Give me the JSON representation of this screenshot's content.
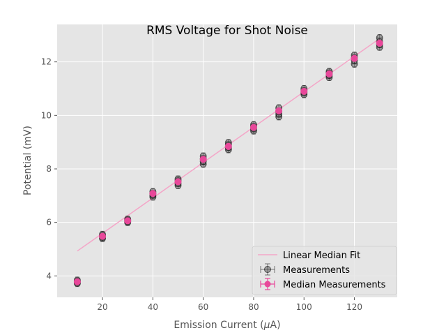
{
  "chart_data": {
    "type": "scatter",
    "title": "RMS Voltage for Shot Noise",
    "xlabel_main": "Emission Current (",
    "xlabel_mu": "μ",
    "xlabel_tail": "A)",
    "ylabel": "Potential (mV)",
    "xlim": [
      2,
      137
    ],
    "ylim": [
      3.2,
      13.4
    ],
    "xticks": [
      20,
      40,
      60,
      80,
      100,
      120
    ],
    "yticks": [
      4,
      6,
      8,
      10,
      12
    ],
    "grid": true,
    "legend_position": "lower-right",
    "colors": {
      "background": "#e5e5e5",
      "fit": "#f4a6c8",
      "median": "#e8489a",
      "measurement_fill": "#555555",
      "measurement_edge": "#000000"
    },
    "fit": {
      "name": "Linear Median Fit",
      "x": [
        10,
        130
      ],
      "y": [
        4.93,
        12.87
      ]
    },
    "measurements": {
      "name": "Measurements",
      "points": [
        {
          "x": 10,
          "y": [
            3.72,
            3.76,
            3.8,
            3.84
          ]
        },
        {
          "x": 20,
          "y": [
            5.4,
            5.45,
            5.5,
            5.55
          ]
        },
        {
          "x": 30,
          "y": [
            6.0,
            6.04,
            6.08,
            6.12
          ]
        },
        {
          "x": 40,
          "y": [
            6.95,
            7.02,
            7.08,
            7.15
          ]
        },
        {
          "x": 50,
          "y": [
            7.38,
            7.46,
            7.55,
            7.62
          ]
        },
        {
          "x": 60,
          "y": [
            8.18,
            8.28,
            8.38,
            8.48
          ]
        },
        {
          "x": 70,
          "y": [
            8.72,
            8.8,
            8.9,
            8.98
          ]
        },
        {
          "x": 80,
          "y": [
            9.42,
            9.5,
            9.58,
            9.65
          ]
        },
        {
          "x": 90,
          "y": [
            9.95,
            10.05,
            10.15,
            10.28
          ]
        },
        {
          "x": 100,
          "y": [
            10.78,
            10.85,
            10.92,
            11.0
          ]
        },
        {
          "x": 110,
          "y": [
            11.42,
            11.5,
            11.58,
            11.64
          ]
        },
        {
          "x": 120,
          "y": [
            11.92,
            12.05,
            12.15,
            12.25
          ]
        },
        {
          "x": 130,
          "y": [
            12.55,
            12.65,
            12.75,
            12.9
          ]
        }
      ]
    },
    "median": {
      "name": "Median Measurements",
      "x": [
        10,
        20,
        30,
        40,
        50,
        60,
        70,
        80,
        90,
        100,
        110,
        120,
        130
      ],
      "y": [
        3.78,
        5.48,
        6.06,
        7.08,
        7.52,
        8.36,
        8.84,
        9.55,
        10.17,
        10.9,
        11.55,
        12.13,
        12.7
      ]
    }
  }
}
